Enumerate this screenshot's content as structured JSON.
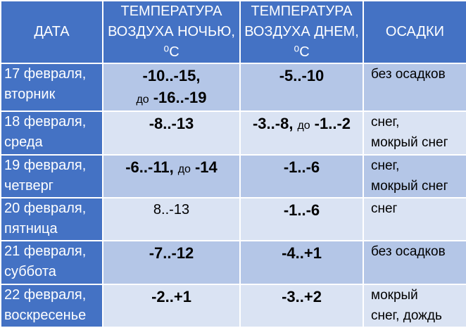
{
  "table": {
    "header": [
      "ДАТА",
      "ТЕМПЕРАТУРА ВОЗДУХА НОЧЬЮ, ⁰С",
      "ТЕМПЕРАТУРА ВОЗДУХА ДНЕМ, ⁰С",
      "ОСАДКИ"
    ],
    "rows": [
      {
        "date": [
          "17 февраля,",
          "вторник"
        ],
        "night": {
          "bold": true,
          "lines": [
            [
              "-10..-15,"
            ],
            [
              {
                "text": "до",
                "small": true
              },
              "-16..-19"
            ]
          ]
        },
        "day": {
          "bold": true,
          "lines": [
            [
              "-5..-10"
            ]
          ]
        },
        "precip": [
          "без осадков"
        ]
      },
      {
        "date": [
          "18 февраля,",
          "среда"
        ],
        "night": {
          "bold": true,
          "lines": [
            [
              "-8..-13"
            ]
          ]
        },
        "day": {
          "bold": true,
          "lines": [
            [
              "-3..-8,",
              {
                "text": "до",
                "small": true
              },
              "-1..-2"
            ]
          ]
        },
        "precip": [
          "снег,",
          "мокрый снег"
        ]
      },
      {
        "date": [
          "19 февраля,",
          "четверг"
        ],
        "night": {
          "bold": true,
          "lines": [
            [
              "-6..-11,",
              {
                "text": "до",
                "small": true
              },
              "-14"
            ]
          ]
        },
        "day": {
          "bold": true,
          "lines": [
            [
              "-1..-6"
            ]
          ]
        },
        "precip": [
          "снег,",
          "мокрый снег"
        ]
      },
      {
        "date": [
          "20 февраля,",
          "пятница"
        ],
        "night": {
          "bold": false,
          "lines": [
            [
              "8..-13"
            ]
          ]
        },
        "day": {
          "bold": true,
          "lines": [
            [
              "-1..-6"
            ]
          ]
        },
        "precip": [
          "снег"
        ]
      },
      {
        "date": [
          "21 февраля,",
          "суббота"
        ],
        "night": {
          "bold": true,
          "lines": [
            [
              "-7..-12"
            ]
          ]
        },
        "day": {
          "bold": true,
          "lines": [
            [
              "-4..+1"
            ]
          ]
        },
        "precip": [
          "без осадков"
        ]
      },
      {
        "date": [
          "22 февраля,",
          "воскресенье"
        ],
        "night": {
          "bold": true,
          "lines": [
            [
              "-2..+1"
            ]
          ]
        },
        "day": {
          "bold": true,
          "lines": [
            [
              "-3..+2"
            ]
          ]
        },
        "precip": [
          "мокрый",
          "снег, дождь"
        ]
      }
    ]
  }
}
